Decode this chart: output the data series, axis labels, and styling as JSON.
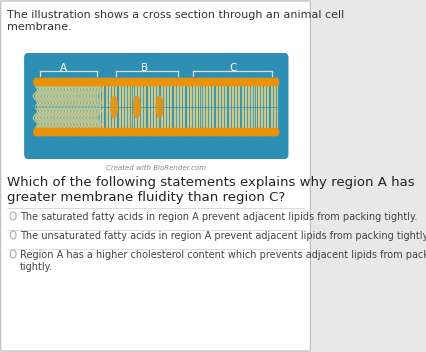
{
  "bg_color": "#e8e8e8",
  "card_color": "#ffffff",
  "title_text": "The illustration shows a cross section through an animal cell\nmembrane.",
  "title_fontsize": 8.0,
  "membrane_bg": "#2e8fb5",
  "membrane_head_color": "#e8920a",
  "tail_color": "#c8c88a",
  "region_labels": [
    "A",
    "B",
    "C"
  ],
  "biorender_text": "Created with BioRender.com",
  "question_text": "Which of the following statements explains why region A has\ngreater membrane fluidity than region C?",
  "question_fontsize": 9.5,
  "options": [
    "The saturated fatty acids in region A prevent adjacent lipids from packing tightly.",
    "The unsaturated fatty acids in region A prevent adjacent lipids from packing tightly.",
    "Region A has a higher cholesterol content which prevents adjacent lipids from packing\ntightly."
  ],
  "option_fontsize": 7.0,
  "divider_color": "#cccccc",
  "bracket_color": "#dddddd",
  "chol_color": "#e8920a",
  "unsaturated_bg": "#a8c8b0"
}
